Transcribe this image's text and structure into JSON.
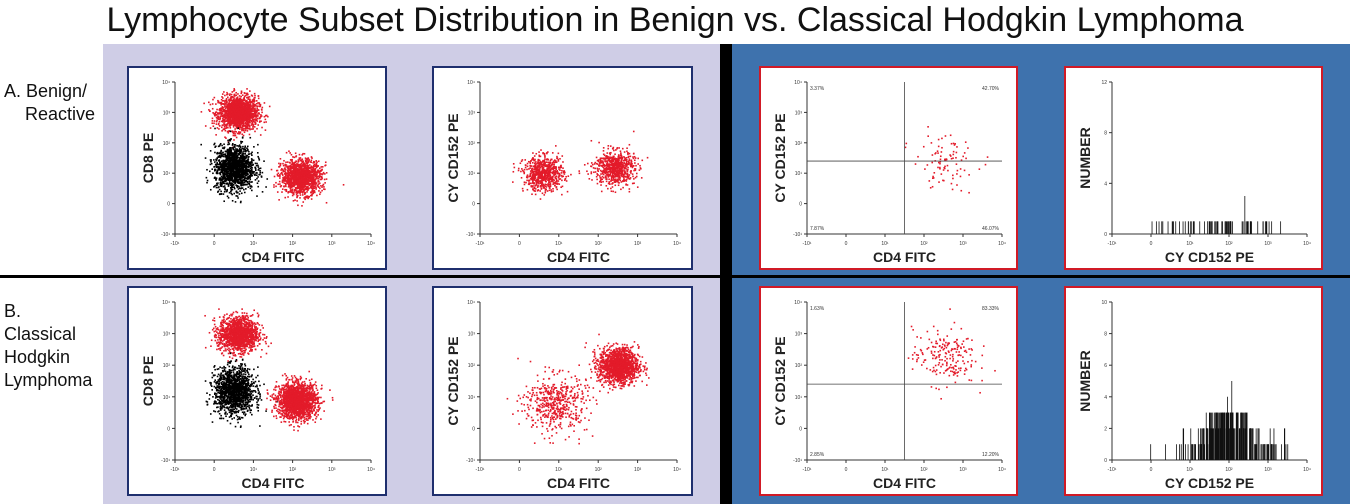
{
  "title": "Lymphocyte Subset Distribution in Benign vs. Classical Hodgkin Lymphoma",
  "rows": [
    {
      "label_lines": [
        "A. Benign/",
        "Reactive"
      ]
    },
    {
      "label_lines": [
        "B.",
        "Classical",
        "Hodgkin",
        "Lymphoma"
      ]
    }
  ],
  "colors": {
    "left_background": "#cfcde6",
    "right_background": "#3e72ad",
    "event_red": "#e31b2a",
    "event_black": "#000000",
    "left_panel_border": "#1f2f6e",
    "right_panel_border": "#d11a26"
  },
  "chart_data": [
    {
      "id": "A1",
      "type": "scatter",
      "xlabel": "CD4 FITC",
      "ylabel": "CD8 PE",
      "x_ticks": [
        "-10¹",
        "0",
        "10¹",
        "10²",
        "10³",
        "10⁴"
      ],
      "y_ticks": [
        "-10¹",
        "0",
        "10¹",
        "10²",
        "10³",
        "10⁴"
      ],
      "populations": [
        {
          "color": "red",
          "x": 0.6,
          "y": 3.0,
          "count": 1700
        },
        {
          "color": "black",
          "x": 0.5,
          "y": 1.2,
          "count": 1500
        },
        {
          "color": "red",
          "x": 2.2,
          "y": 0.9,
          "count": 1400
        }
      ]
    },
    {
      "id": "A2",
      "type": "scatter",
      "xlabel": "CD4 FITC",
      "ylabel": "CY CD152 PE",
      "x_ticks": [
        "-10¹",
        "0",
        "10¹",
        "10²",
        "10³",
        "10⁴"
      ],
      "y_ticks": [
        "-10¹",
        "0",
        "10¹",
        "10²",
        "10³",
        "10⁴"
      ],
      "populations": [
        {
          "color": "red",
          "x": 0.6,
          "y": 1.0,
          "count": 700
        },
        {
          "color": "red",
          "x": 2.4,
          "y": 1.2,
          "count": 700
        }
      ]
    },
    {
      "id": "A3",
      "type": "scatter",
      "xlabel": "CD4 FITC",
      "ylabel": "CY CD152 PE",
      "quadrants": {
        "ul": "3.37%",
        "ur": "42.70%",
        "ll": "7.87%",
        "lr": "46.07%"
      },
      "x_ticks": [
        "-10¹",
        "0",
        "10¹",
        "10²",
        "10³",
        "10⁴"
      ],
      "y_ticks": [
        "-10¹",
        "0",
        "10¹",
        "10²",
        "10³",
        "10⁴"
      ],
      "populations": [
        {
          "color": "red",
          "x": 2.5,
          "y": 1.4,
          "count": 90
        }
      ]
    },
    {
      "id": "A4",
      "type": "histogram",
      "xlabel": "CY CD152 PE",
      "ylabel": "NUMBER",
      "x_ticks": [
        "-10¹",
        "0",
        "10¹",
        "10²",
        "10³",
        "10⁴"
      ],
      "ylim": [
        0,
        12
      ],
      "y_ticks": [
        "0",
        "4",
        "8",
        "12"
      ],
      "peak": 3,
      "typical_count": 1
    },
    {
      "id": "B1",
      "type": "scatter",
      "xlabel": "CD4 FITC",
      "ylabel": "CD8 PE",
      "x_ticks": [
        "-10¹",
        "0",
        "10¹",
        "10²",
        "10³",
        "10⁴"
      ],
      "y_ticks": [
        "-10¹",
        "0",
        "10¹",
        "10²",
        "10³",
        "10⁴"
      ],
      "populations": [
        {
          "color": "red",
          "x": 0.6,
          "y": 3.0,
          "count": 1400
        },
        {
          "color": "black",
          "x": 0.5,
          "y": 1.2,
          "count": 1400
        },
        {
          "color": "red",
          "x": 2.1,
          "y": 0.9,
          "count": 1800
        }
      ]
    },
    {
      "id": "B2",
      "type": "scatter",
      "xlabel": "CD4 FITC",
      "ylabel": "CY CD152 PE",
      "x_ticks": [
        "-10¹",
        "0",
        "10¹",
        "10²",
        "10³",
        "10⁴"
      ],
      "y_ticks": [
        "-10¹",
        "0",
        "10¹",
        "10²",
        "10³",
        "10⁴"
      ],
      "populations": [
        {
          "color": "red",
          "x": 0.9,
          "y": 0.8,
          "count": 500
        },
        {
          "color": "red",
          "x": 2.5,
          "y": 2.0,
          "count": 1400
        }
      ]
    },
    {
      "id": "B3",
      "type": "scatter",
      "xlabel": "CD4 FITC",
      "ylabel": "CY CD152 PE",
      "quadrants": {
        "ul": "1.63%",
        "ur": "83.33%",
        "ll": "2.85%",
        "lr": "12.20%"
      },
      "x_ticks": [
        "-10¹",
        "0",
        "10¹",
        "10²",
        "10³",
        "10⁴"
      ],
      "y_ticks": [
        "-10¹",
        "0",
        "10¹",
        "10²",
        "10³",
        "10⁴"
      ],
      "populations": [
        {
          "color": "red",
          "x": 2.5,
          "y": 2.3,
          "count": 200
        }
      ]
    },
    {
      "id": "B4",
      "type": "histogram",
      "xlabel": "CY CD152 PE",
      "ylabel": "NUMBER",
      "x_ticks": [
        "-10¹",
        "0",
        "10¹",
        "10²",
        "10³",
        "10⁴"
      ],
      "ylim": [
        0,
        10
      ],
      "y_ticks": [
        "0",
        "2",
        "4",
        "6",
        "8",
        "10"
      ],
      "peak": 5,
      "typical_count": 2
    }
  ]
}
